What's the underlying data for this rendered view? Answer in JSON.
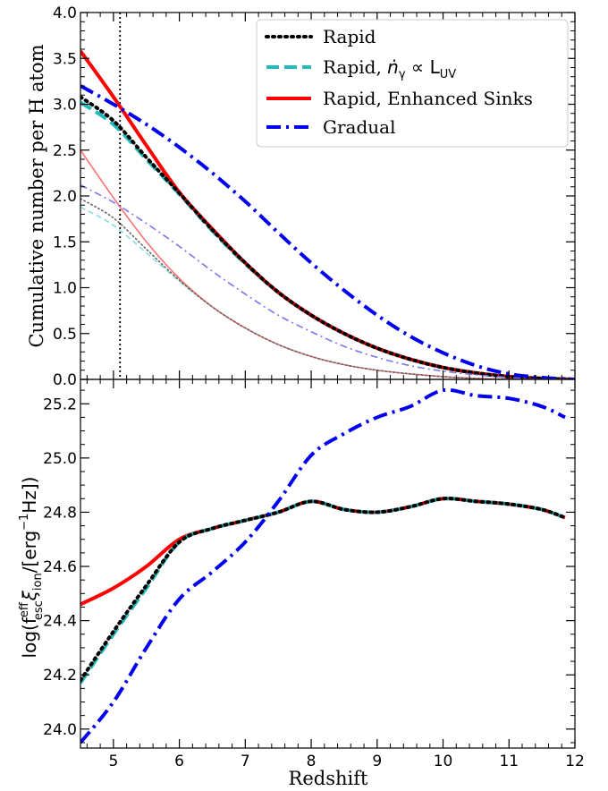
{
  "chart_data": [
    {
      "type": "line",
      "ylabel": "Cumulative number per H atom",
      "xlim": [
        4.5,
        12
      ],
      "ylim": [
        0,
        4
      ],
      "xticks": [
        5,
        6,
        7,
        8,
        9,
        10,
        11,
        12
      ],
      "yticks": [
        "0.0",
        "0.5",
        "1.0",
        "1.5",
        "2.0",
        "2.5",
        "3.0",
        "3.5",
        "4.0"
      ],
      "vline_x": 5.1,
      "legend_position": "top-right",
      "legend": [
        {
          "label": "Rapid",
          "color": "#000000",
          "style": "dotted"
        },
        {
          "label": "Rapid, ",
          "math": "ṅ",
          "sub1": "γ",
          "mid": " ∝ L",
          "sub2": "UV",
          "color": "#22bbbb",
          "style": "dashed"
        },
        {
          "label": "Rapid, Enhanced Sinks",
          "color": "#ff0000",
          "style": "solid"
        },
        {
          "label": "Gradual",
          "color": "#0000ee",
          "style": "dashdot"
        }
      ],
      "series": [
        {
          "color": "#22bbbb",
          "style": "dashed",
          "weight": "thick",
          "x": [
            4.5,
            5,
            5.5,
            6,
            6.5,
            7,
            7.5,
            8,
            8.5,
            9,
            9.5,
            10,
            10.5,
            11,
            11.5,
            12
          ],
          "y": [
            3.02,
            2.78,
            2.4,
            2.02,
            1.62,
            1.26,
            0.95,
            0.7,
            0.5,
            0.34,
            0.22,
            0.13,
            0.07,
            0.03,
            0.01,
            0.0
          ]
        },
        {
          "color": "#ff0000",
          "style": "solid",
          "weight": "thick",
          "x": [
            4.5,
            5,
            5.5,
            6,
            6.5,
            7,
            7.5,
            8,
            8.5,
            9,
            9.5,
            10,
            10.5,
            11,
            11.5,
            12
          ],
          "y": [
            3.58,
            3.08,
            2.55,
            2.04,
            1.64,
            1.27,
            0.95,
            0.7,
            0.5,
            0.34,
            0.22,
            0.13,
            0.07,
            0.03,
            0.01,
            0.0
          ]
        },
        {
          "color": "#000000",
          "style": "dotted",
          "weight": "thick",
          "x": [
            4.5,
            5,
            5.5,
            6,
            6.5,
            7,
            7.5,
            8,
            8.5,
            9,
            9.5,
            10,
            10.5,
            11,
            11.5,
            12
          ],
          "y": [
            3.08,
            2.82,
            2.42,
            2.03,
            1.63,
            1.27,
            0.95,
            0.7,
            0.5,
            0.34,
            0.22,
            0.13,
            0.07,
            0.03,
            0.01,
            0.0
          ]
        },
        {
          "color": "#0000ee",
          "style": "dashdot",
          "weight": "thick",
          "x": [
            4.5,
            5,
            5.5,
            6,
            6.5,
            7,
            7.5,
            8,
            8.5,
            9,
            9.5,
            10,
            10.5,
            11,
            11.5,
            12
          ],
          "y": [
            3.2,
            3.0,
            2.78,
            2.53,
            2.25,
            1.94,
            1.6,
            1.27,
            0.97,
            0.7,
            0.47,
            0.29,
            0.15,
            0.06,
            0.02,
            0.0
          ]
        },
        {
          "color": "#88dddd",
          "style": "dashed",
          "weight": "thin",
          "x": [
            4.5,
            5,
            5.5,
            6,
            6.5,
            7,
            7.5,
            8,
            8.5,
            9,
            9.5,
            10,
            10.5,
            11,
            11.5,
            12
          ],
          "y": [
            1.88,
            1.68,
            1.38,
            1.07,
            0.79,
            0.56,
            0.38,
            0.25,
            0.16,
            0.1,
            0.06,
            0.03,
            0.01,
            0.0,
            0.0,
            0.0
          ]
        },
        {
          "color": "#ff7070",
          "style": "solid",
          "weight": "thin",
          "x": [
            4.5,
            5,
            5.5,
            6,
            6.5,
            7,
            7.5,
            8,
            8.5,
            9,
            9.5,
            10,
            10.5,
            11,
            11.5,
            12
          ],
          "y": [
            2.5,
            1.98,
            1.5,
            1.1,
            0.79,
            0.56,
            0.38,
            0.25,
            0.16,
            0.1,
            0.06,
            0.03,
            0.01,
            0.0,
            0.0,
            0.0
          ]
        },
        {
          "color": "#666666",
          "style": "dotted",
          "weight": "thin",
          "x": [
            4.5,
            5,
            5.5,
            6,
            6.5,
            7,
            7.5,
            8,
            8.5,
            9,
            9.5,
            10,
            10.5,
            11,
            11.5,
            12
          ],
          "y": [
            1.97,
            1.76,
            1.42,
            1.08,
            0.79,
            0.56,
            0.38,
            0.25,
            0.16,
            0.1,
            0.06,
            0.03,
            0.01,
            0.0,
            0.0,
            0.0
          ]
        },
        {
          "color": "#7777ee",
          "style": "dashdot",
          "weight": "thin",
          "x": [
            4.5,
            5,
            5.5,
            6,
            6.5,
            7,
            7.5,
            8,
            8.5,
            9,
            9.5,
            10,
            10.5,
            11,
            11.5,
            12
          ],
          "y": [
            2.12,
            1.93,
            1.7,
            1.45,
            1.18,
            0.93,
            0.7,
            0.52,
            0.36,
            0.24,
            0.15,
            0.09,
            0.05,
            0.02,
            0.0,
            0.0
          ]
        }
      ]
    },
    {
      "type": "line",
      "xlabel": "Redshift",
      "ylabel": "log(f",
      "ylabel_sup": "eff",
      "ylabel_sub": "esc",
      "ylabel_xi": "ξ",
      "ylabel_ion": "ion",
      "ylabel_unit": "/[erg",
      "ylabel_exp": "−1",
      "ylabel_end": "Hz])",
      "xlim": [
        4.5,
        12
      ],
      "ylim": [
        23.93,
        25.29
      ],
      "xticks": [
        "5",
        "6",
        "7",
        "8",
        "9",
        "10",
        "11",
        "12"
      ],
      "yticks": [
        "24.0",
        "24.2",
        "24.4",
        "24.6",
        "24.8",
        "25.0",
        "25.2"
      ],
      "series": [
        {
          "color": "#ff0000",
          "style": "solid",
          "weight": "thick",
          "x": [
            4.5,
            5,
            5.5,
            6,
            6.5,
            7,
            7.5,
            8,
            8.5,
            9,
            9.5,
            10,
            10.5,
            11,
            11.5,
            11.85
          ],
          "y": [
            24.46,
            24.52,
            24.6,
            24.7,
            24.74,
            24.77,
            24.8,
            24.84,
            24.81,
            24.8,
            24.82,
            24.85,
            24.84,
            24.83,
            24.81,
            24.78
          ]
        },
        {
          "color": "#22bbbb",
          "style": "dashed",
          "weight": "thick",
          "x": [
            4.5,
            5,
            5.5,
            6,
            6.5,
            7,
            7.5,
            8,
            8.5,
            9,
            9.5,
            10,
            10.5,
            11,
            11.5,
            11.85
          ],
          "y": [
            24.17,
            24.35,
            24.52,
            24.69,
            24.74,
            24.77,
            24.8,
            24.84,
            24.81,
            24.8,
            24.82,
            24.85,
            24.84,
            24.83,
            24.81,
            24.78
          ]
        },
        {
          "color": "#000000",
          "style": "dotted",
          "weight": "thick",
          "x": [
            4.5,
            5,
            5.5,
            6,
            6.5,
            7,
            7.5,
            8,
            8.5,
            9,
            9.5,
            10,
            10.5,
            11,
            11.5,
            11.85
          ],
          "y": [
            24.18,
            24.36,
            24.53,
            24.69,
            24.74,
            24.77,
            24.8,
            24.84,
            24.81,
            24.8,
            24.82,
            24.85,
            24.84,
            24.83,
            24.81,
            24.78
          ]
        },
        {
          "color": "#0000ee",
          "style": "dashdot",
          "weight": "thick",
          "x": [
            4.5,
            5,
            5.5,
            6,
            6.5,
            7,
            7.5,
            8,
            8.5,
            9,
            9.5,
            10,
            10.5,
            11,
            11.5,
            11.85
          ],
          "y": [
            23.95,
            24.1,
            24.3,
            24.48,
            24.58,
            24.69,
            24.84,
            25.01,
            25.09,
            25.15,
            25.19,
            25.25,
            25.23,
            25.22,
            25.19,
            25.15
          ]
        }
      ]
    }
  ]
}
